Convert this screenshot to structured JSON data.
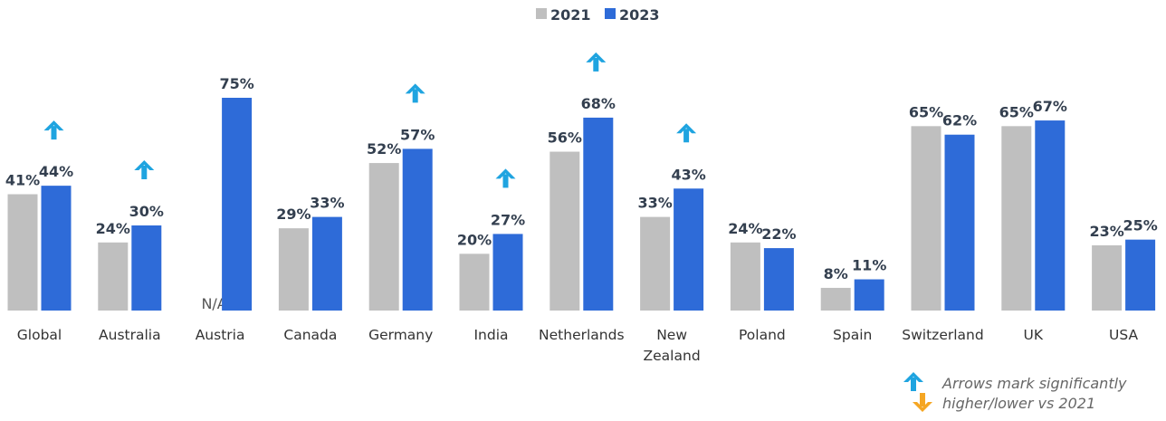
{
  "chart_data": {
    "type": "bar",
    "categories": [
      [
        "Global"
      ],
      [
        "Australia"
      ],
      [
        "Austria"
      ],
      [
        "Canada"
      ],
      [
        "Germany"
      ],
      [
        "India"
      ],
      [
        "Netherlands"
      ],
      [
        "New",
        "Zealand"
      ],
      [
        "Poland"
      ],
      [
        "Spain"
      ],
      [
        "Switzerland"
      ],
      [
        "UK"
      ],
      [
        "USA"
      ]
    ],
    "series": [
      {
        "name": "2021",
        "color": "#bfbfbf",
        "values": [
          41,
          24,
          null,
          29,
          52,
          20,
          56,
          33,
          24,
          8,
          65,
          65,
          23
        ],
        "labels": [
          "41%",
          "24%",
          "N/A",
          "29%",
          "52%",
          "20%",
          "56%",
          "33%",
          "24%",
          "8%",
          "65%",
          "65%",
          "23%"
        ]
      },
      {
        "name": "2023",
        "color": "#2e6bd8",
        "values": [
          44,
          30,
          75,
          33,
          57,
          27,
          68,
          43,
          22,
          11,
          62,
          67,
          25
        ],
        "labels": [
          "44%",
          "30%",
          "75%",
          "33%",
          "57%",
          "27%",
          "68%",
          "43%",
          "22%",
          "11%",
          "62%",
          "67%",
          "25%"
        ]
      }
    ],
    "significant_higher": [
      true,
      true,
      false,
      false,
      true,
      true,
      true,
      true,
      false,
      false,
      false,
      false,
      false
    ],
    "ylim": [
      0,
      75
    ],
    "legend_position": "top-center",
    "annotation": [
      "Arrows mark significantly",
      "higher/lower vs 2021"
    ],
    "arrow_up_color": "#1fa4e0",
    "arrow_down_color": "#f5a623"
  }
}
